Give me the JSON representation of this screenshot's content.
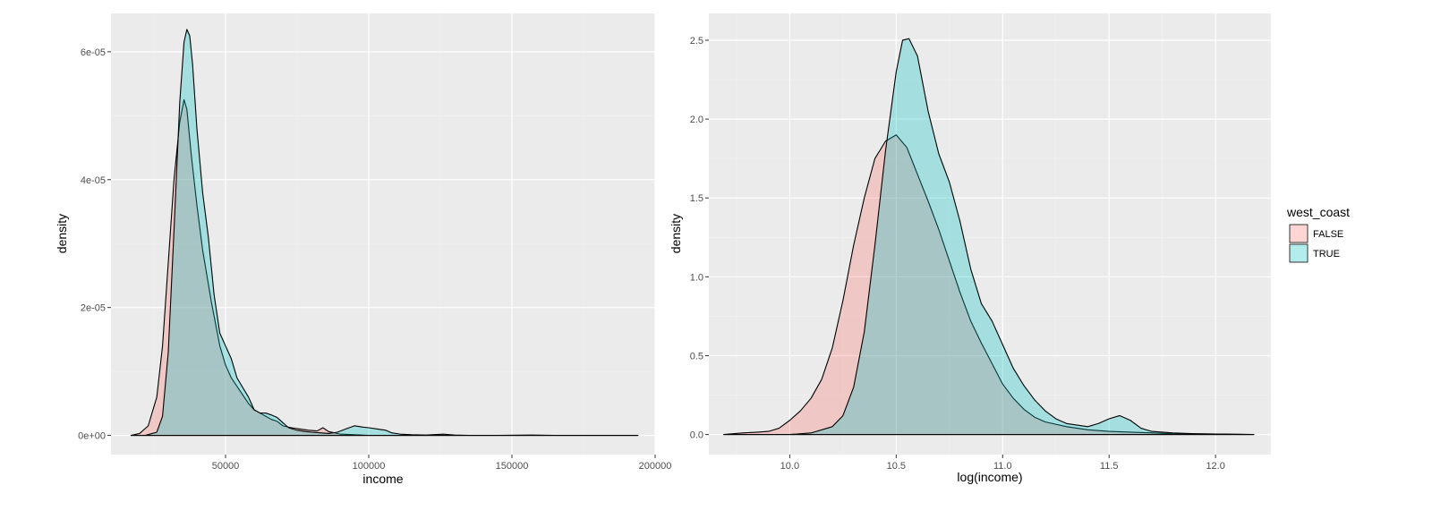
{
  "chart_data": [
    {
      "type": "area",
      "subtype": "density",
      "xlabel": "income",
      "ylabel": "density",
      "xlim": [
        10000,
        200000
      ],
      "ylim": [
        -3e-06,
        6.6e-05
      ],
      "x_ticks": [
        50000,
        100000,
        150000,
        200000
      ],
      "x_tick_labels": [
        "50000",
        "100000",
        "150000",
        "200000"
      ],
      "y_ticks": [
        0,
        2e-05,
        4e-05,
        6e-05
      ],
      "y_tick_labels": [
        "0e+00",
        "2e-05",
        "4e-05",
        "6e-05"
      ],
      "grid": true,
      "series": [
        {
          "name": "FALSE",
          "x": [
            17000,
            20000,
            23000,
            26000,
            28000,
            30000,
            32000,
            34000,
            35500,
            36500,
            38000,
            40000,
            42000,
            45000,
            48000,
            50000,
            52000,
            55000,
            58000,
            60000,
            62000,
            64000,
            66000,
            68000,
            70000,
            73000,
            76000,
            79000,
            82000,
            84000,
            86000,
            88000,
            90000,
            95000,
            100000,
            110000,
            130000,
            160000,
            194000
          ],
          "y": [
            0,
            3e-07,
            1.5e-06,
            6e-06,
            1.4e-05,
            2.7e-05,
            4e-05,
            4.9e-05,
            5.25e-05,
            5.1e-05,
            4.4e-05,
            3.6e-05,
            2.9e-05,
            2.1e-05,
            1.4e-05,
            1.1e-05,
            9e-06,
            7e-06,
            5e-06,
            4e-06,
            3.5e-06,
            3e-06,
            2.5e-06,
            2.2e-06,
            1.5e-06,
            1.2e-06,
            1e-06,
            8e-07,
            7e-07,
            1.2e-06,
            6e-07,
            4e-07,
            2e-07,
            1e-07,
            0,
            0,
            0,
            0,
            0
          ]
        },
        {
          "name": "TRUE",
          "x": [
            17000,
            22000,
            26000,
            28000,
            30000,
            32000,
            34000,
            35500,
            36500,
            37500,
            38500,
            40000,
            42000,
            44000,
            46000,
            48000,
            50000,
            52000,
            54000,
            56000,
            58000,
            60000,
            62000,
            64000,
            66000,
            68000,
            70000,
            72000,
            75000,
            78000,
            80000,
            83000,
            86000,
            89000,
            92000,
            95000,
            98000,
            100000,
            103000,
            106000,
            108000,
            111000,
            115000,
            120000,
            126000,
            130000,
            135000,
            145000,
            157000,
            165000,
            180000,
            194000
          ],
          "y": [
            0,
            0,
            5e-07,
            3e-06,
            1.3e-05,
            3.2e-05,
            5.2e-05,
            6.15e-05,
            6.35e-05,
            6.25e-05,
            5.8e-05,
            4.8e-05,
            3.8e-05,
            3.1e-05,
            2.2e-05,
            1.6e-05,
            1.4e-05,
            1.2e-05,
            9e-06,
            7.5e-06,
            6e-06,
            4e-06,
            3.5e-06,
            3.5e-06,
            3.2e-06,
            2.8e-06,
            2e-06,
            1.2e-06,
            8e-07,
            6e-07,
            5e-07,
            4e-07,
            3e-07,
            5e-07,
            1e-06,
            1.5e-06,
            1.3e-06,
            1.2e-06,
            1e-06,
            8e-07,
            4e-07,
            2e-07,
            1e-07,
            5e-08,
            2e-07,
            5e-08,
            0,
            0,
            5e-08,
            0,
            0,
            0
          ]
        }
      ]
    },
    {
      "type": "area",
      "subtype": "density",
      "xlabel": "log(income)",
      "ylabel": "density",
      "xlim": [
        9.62,
        12.26
      ],
      "ylim": [
        -0.127,
        2.67
      ],
      "x_ticks": [
        10.0,
        10.5,
        11.0,
        11.5,
        12.0
      ],
      "x_tick_labels": [
        "10.0",
        "10.5",
        "11.0",
        "11.5",
        "12.0"
      ],
      "y_ticks": [
        0,
        0.5,
        1.0,
        1.5,
        2.0,
        2.5
      ],
      "y_tick_labels": [
        "0.0",
        "0.5",
        "1.0",
        "1.5",
        "2.0",
        "2.5"
      ],
      "grid": true,
      "legend": {
        "title": "west_coast",
        "position": "right",
        "entries": [
          "FALSE",
          "TRUE"
        ]
      },
      "series": [
        {
          "name": "FALSE",
          "x": [
            9.69,
            9.78,
            9.85,
            9.9,
            9.95,
            10.0,
            10.05,
            10.1,
            10.15,
            10.2,
            10.25,
            10.3,
            10.35,
            10.4,
            10.45,
            10.5,
            10.55,
            10.6,
            10.65,
            10.7,
            10.75,
            10.8,
            10.85,
            10.9,
            10.95,
            11.0,
            11.05,
            11.1,
            11.15,
            11.2,
            11.3,
            11.4,
            11.5,
            11.6,
            11.7,
            11.8,
            12.0,
            12.18
          ],
          "y": [
            0,
            0.01,
            0.015,
            0.02,
            0.04,
            0.09,
            0.15,
            0.23,
            0.35,
            0.55,
            0.85,
            1.2,
            1.5,
            1.75,
            1.86,
            1.9,
            1.82,
            1.65,
            1.48,
            1.3,
            1.1,
            0.9,
            0.72,
            0.58,
            0.45,
            0.32,
            0.23,
            0.16,
            0.11,
            0.08,
            0.05,
            0.03,
            0.02,
            0.015,
            0.01,
            0.005,
            0.003,
            0
          ]
        },
        {
          "name": "TRUE",
          "x": [
            9.69,
            10.0,
            10.1,
            10.2,
            10.25,
            10.3,
            10.35,
            10.4,
            10.45,
            10.5,
            10.53,
            10.56,
            10.6,
            10.65,
            10.7,
            10.75,
            10.8,
            10.85,
            10.9,
            10.95,
            11.0,
            11.05,
            11.1,
            11.15,
            11.2,
            11.25,
            11.3,
            11.4,
            11.45,
            11.5,
            11.55,
            11.6,
            11.65,
            11.7,
            11.8,
            11.9,
            12.0,
            12.18
          ],
          "y": [
            0,
            0,
            0.01,
            0.05,
            0.12,
            0.3,
            0.65,
            1.2,
            1.8,
            2.3,
            2.5,
            2.51,
            2.4,
            2.05,
            1.78,
            1.6,
            1.35,
            1.05,
            0.83,
            0.72,
            0.57,
            0.42,
            0.31,
            0.22,
            0.15,
            0.1,
            0.07,
            0.05,
            0.07,
            0.1,
            0.12,
            0.09,
            0.04,
            0.02,
            0.01,
            0.005,
            0.003,
            0
          ]
        }
      ]
    }
  ],
  "colors": {
    "panel_bg": "#ebebeb",
    "grid_major": "#ffffff",
    "grid_minor": "#f2f2f2",
    "false_fill": "#f8766d",
    "true_fill": "#00bfc4",
    "outline": "#000000"
  }
}
